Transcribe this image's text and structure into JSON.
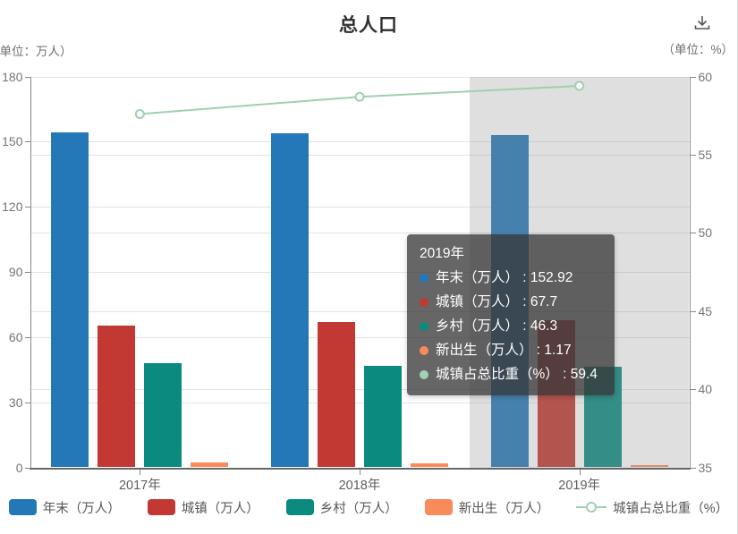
{
  "title": "总人口",
  "unit_left": "（单位：万人）",
  "unit_right": "（单位：%）",
  "toolbox": {
    "save_icon_name": "save-image-download-icon"
  },
  "chart_data": {
    "type": "bar",
    "categories": [
      "2017年",
      "2018年",
      "2019年"
    ],
    "series": [
      {
        "name": "年末（万人）",
        "type": "bar",
        "color": "#2478b8",
        "values": [
          154.2,
          153.8,
          152.92
        ]
      },
      {
        "name": "城镇（万人）",
        "type": "bar",
        "color": "#c23832",
        "values": [
          65.4,
          66.9,
          67.7
        ]
      },
      {
        "name": "乡村（万人）",
        "type": "bar",
        "color": "#0b8a80",
        "values": [
          48.0,
          46.7,
          46.3
        ]
      },
      {
        "name": "新出生（万人）",
        "type": "bar",
        "color": "#f98b5a",
        "values": [
          2.3,
          1.8,
          1.17
        ]
      },
      {
        "name": "城镇占总比重（%）",
        "type": "line",
        "color": "#9fcfb2",
        "values": [
          57.6,
          58.7,
          59.4
        ],
        "axis": "right"
      }
    ],
    "left_axis": {
      "ticks": [
        0,
        30,
        60,
        90,
        120,
        150,
        180
      ],
      "min": 0,
      "max": 180
    },
    "right_axis": {
      "ticks": [
        35,
        40,
        45,
        50,
        55,
        60
      ],
      "min": 35,
      "max": 60
    },
    "highlighted_category": "2019年",
    "legend_position": "bottom",
    "grid": true
  },
  "tooltip": {
    "title": "2019年",
    "rows": [
      {
        "label": "年末（万人）",
        "value": "152.92",
        "color": "#2478b8"
      },
      {
        "label": "城镇（万人）",
        "value": "67.7",
        "color": "#c23832"
      },
      {
        "label": "乡村（万人）",
        "value": "46.3",
        "color": "#0b8a80"
      },
      {
        "label": "新出生（万人）",
        "value": "1.17",
        "color": "#f98b5a"
      },
      {
        "label": "城镇占总比重（%）",
        "value": "59.4",
        "color": "#a2d1b6"
      }
    ]
  }
}
